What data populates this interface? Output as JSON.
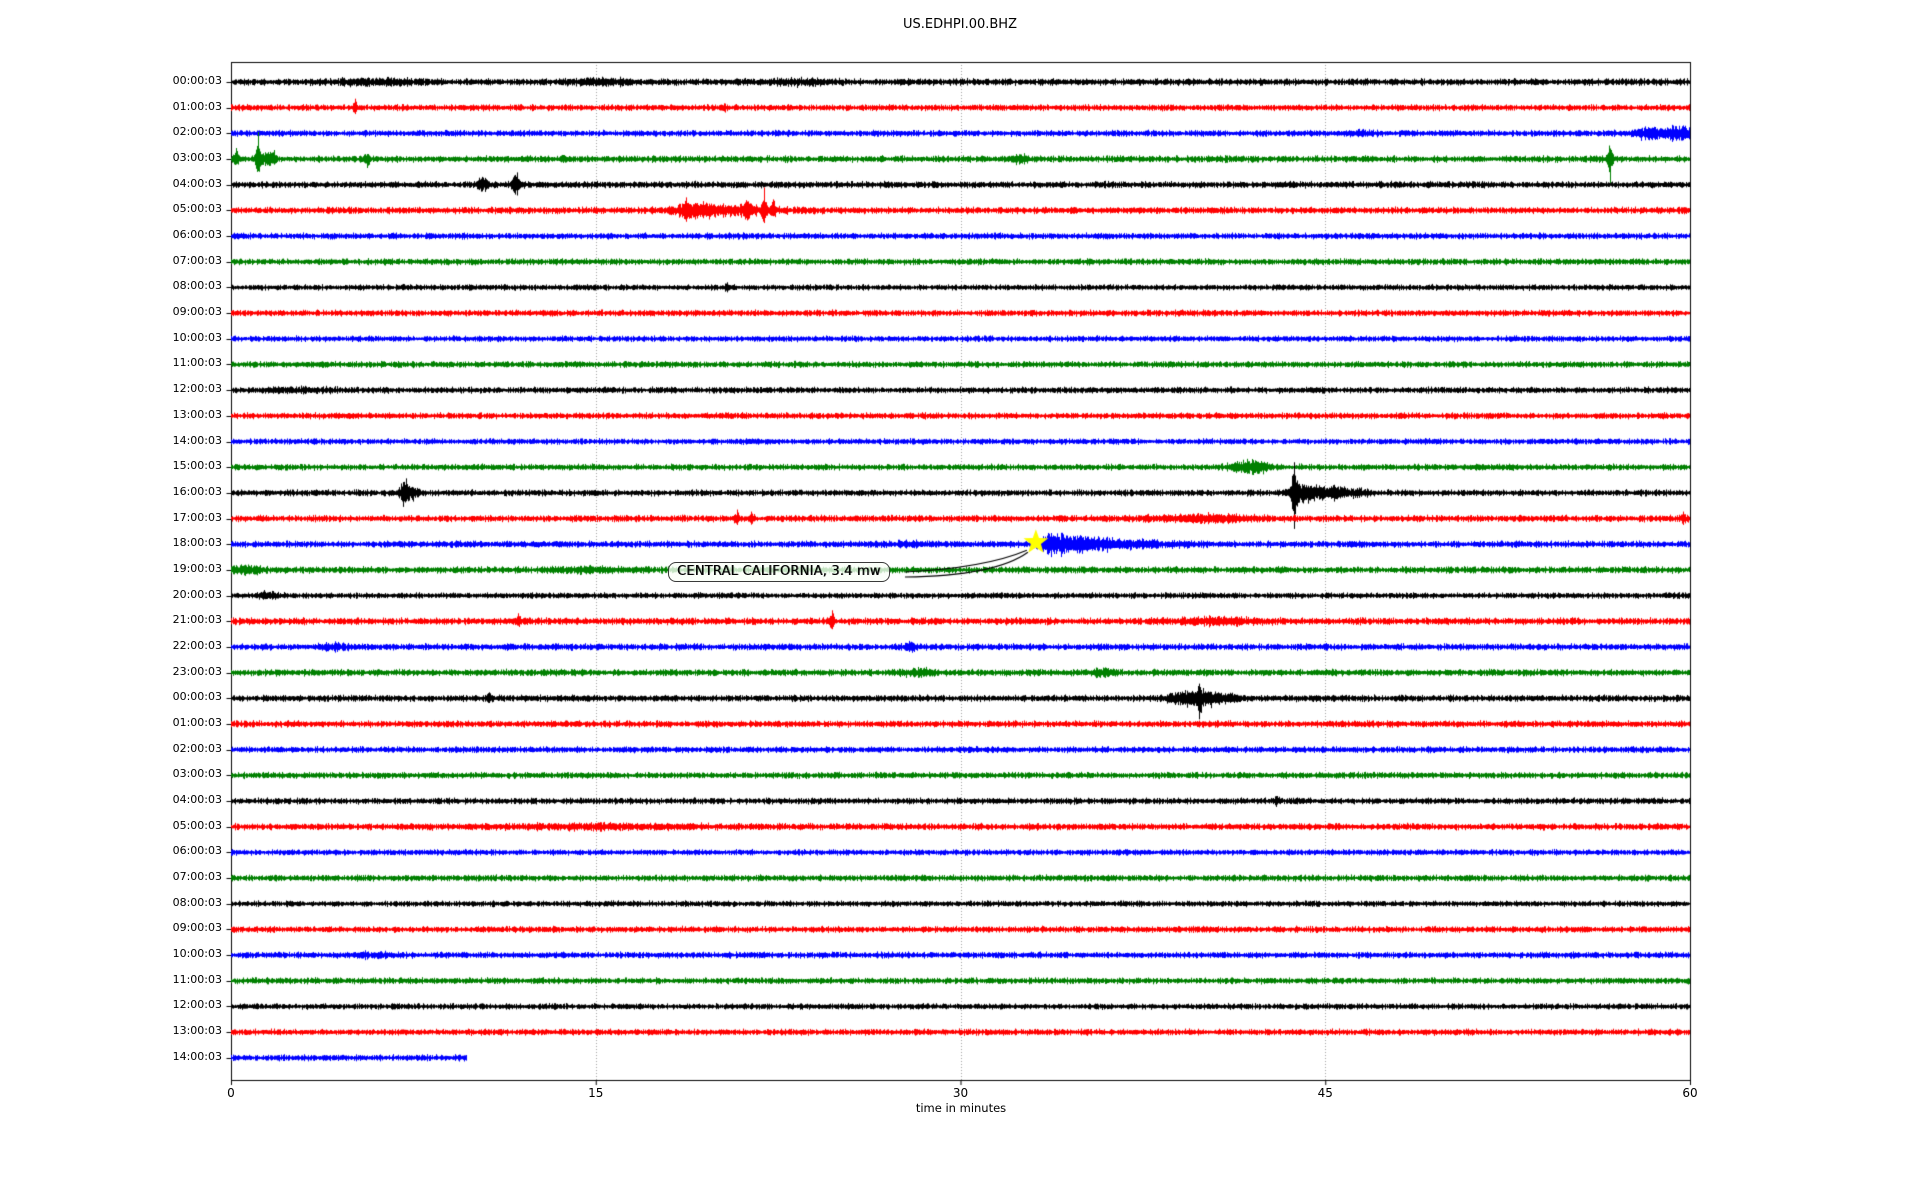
{
  "chart_data": {
    "type": "line",
    "subtype": "helicorder-seismogram",
    "title": "US.EDHPI.00.BHZ",
    "xlabel": "time in minutes",
    "xlim": [
      0,
      60
    ],
    "xticks": [
      0,
      15,
      30,
      45,
      60
    ],
    "grid_minutes": [
      15,
      30,
      45
    ],
    "grid_style": "dotted",
    "background": "#ffffff",
    "trace_colors": {
      "black": "#000000",
      "red": "#ff0000",
      "blue": "#0000ff",
      "green": "#008000"
    },
    "annotation": {
      "text": "CENTRAL CALIFORNIA, 3.4 mw",
      "event_row_label": "18:00:03",
      "event_minute": 33.1,
      "marker": "star-marker",
      "marker_color": "#ffff00"
    },
    "rows": [
      {
        "label": "00:00:03",
        "color": "black",
        "duration": 60,
        "noise": 3.5,
        "events": [
          {
            "t": 6.0,
            "amp": 2.5,
            "w": 1.2
          },
          {
            "t": 15.3,
            "amp": 2.5,
            "w": 0.8
          },
          {
            "t": 23.3,
            "amp": 2.5,
            "w": 0.8
          }
        ]
      },
      {
        "label": "01:00:03",
        "color": "red",
        "duration": 60,
        "noise": 3.2,
        "events": [
          {
            "t": 5.1,
            "amp": 9,
            "w": 0.05
          },
          {
            "t": 20.3,
            "amp": 4,
            "w": 0.08
          }
        ]
      },
      {
        "label": "02:00:03",
        "color": "blue",
        "duration": 60,
        "noise": 3.2,
        "events": [
          {
            "t": 46.5,
            "amp": 2,
            "w": 0.5
          },
          {
            "t": 58.2,
            "amp": 5,
            "w": 0.5
          },
          {
            "t": 59.4,
            "amp": 6,
            "w": 0.6
          }
        ]
      },
      {
        "label": "03:00:03",
        "color": "green",
        "duration": 60,
        "noise": 3.4,
        "events": [
          {
            "t": 0.2,
            "amp": 11,
            "w": 0.05,
            "u": 1,
            "d": 0.45
          },
          {
            "t": 1.1,
            "amp": 27,
            "w": 0.05,
            "u": 1,
            "d": 0.3
          },
          {
            "t": 1.45,
            "amp": 8,
            "w": 0.15
          },
          {
            "t": 1.75,
            "amp": 9,
            "w": 0.05
          },
          {
            "t": 5.6,
            "amp": 9,
            "w": 0.04,
            "u": 0.25,
            "d": 1
          },
          {
            "t": 13.7,
            "amp": 4,
            "w": 0.1
          },
          {
            "t": 32.4,
            "amp": 4,
            "w": 0.25
          },
          {
            "t": 56.7,
            "amp": 24,
            "w": 0.04,
            "u": 0.15,
            "d": 1
          }
        ]
      },
      {
        "label": "04:00:03",
        "color": "black",
        "duration": 60,
        "noise": 3.4,
        "events": [
          {
            "t": 10.3,
            "amp": 7,
            "w": 0.15
          },
          {
            "t": 11.7,
            "amp": 11,
            "w": 0.12
          }
        ]
      },
      {
        "label": "05:00:03",
        "color": "red",
        "duration": 60,
        "noise": 3.4,
        "events": [
          {
            "t": 18.7,
            "amp": 13,
            "w": 0.1
          },
          {
            "t": 19.1,
            "amp": 5,
            "w": 0.6
          },
          {
            "t": 20.5,
            "amp": 4,
            "w": 1.5
          },
          {
            "t": 21.2,
            "amp": 8,
            "w": 0.15
          },
          {
            "t": 21.9,
            "amp": 23,
            "w": 0.06,
            "u": 1,
            "d": 0.55
          },
          {
            "t": 22.3,
            "amp": 11,
            "w": 0.1
          }
        ]
      },
      {
        "label": "06:00:03",
        "color": "blue",
        "duration": 60,
        "noise": 3.2,
        "events": []
      },
      {
        "label": "07:00:03",
        "color": "green",
        "duration": 60,
        "noise": 3.2,
        "events": []
      },
      {
        "label": "08:00:03",
        "color": "black",
        "duration": 60,
        "noise": 3.0,
        "events": [
          {
            "t": 20.4,
            "amp": 5,
            "w": 0.06
          }
        ]
      },
      {
        "label": "09:00:03",
        "color": "red",
        "duration": 60,
        "noise": 3.2,
        "events": []
      },
      {
        "label": "10:00:03",
        "color": "blue",
        "duration": 60,
        "noise": 3.0,
        "events": []
      },
      {
        "label": "11:00:03",
        "color": "green",
        "duration": 60,
        "noise": 3.2,
        "events": []
      },
      {
        "label": "12:00:03",
        "color": "black",
        "duration": 60,
        "noise": 3.2,
        "events": [
          {
            "t": 2.8,
            "amp": 1.5,
            "w": 1.0
          }
        ]
      },
      {
        "label": "13:00:03",
        "color": "red",
        "duration": 60,
        "noise": 3.2,
        "events": []
      },
      {
        "label": "14:00:03",
        "color": "blue",
        "duration": 60,
        "noise": 3.0,
        "events": []
      },
      {
        "label": "15:00:03",
        "color": "green",
        "duration": 60,
        "noise": 3.2,
        "events": [
          {
            "t": 41.9,
            "amp": 7,
            "w": 0.5
          }
        ]
      },
      {
        "label": "16:00:03",
        "color": "black",
        "duration": 60,
        "noise": 3.2,
        "events": [
          {
            "t": 7.1,
            "amp": 12,
            "w": 0.12
          },
          {
            "t": 7.45,
            "amp": 6,
            "w": 0.25
          },
          {
            "t": 43.7,
            "amp": 36,
            "w": 0.05,
            "u": 0.85,
            "d": 1
          },
          {
            "t": 43.95,
            "amp": 10,
            "w": 0.3
          },
          {
            "t": 44.6,
            "amp": 8,
            "w": 0.25
          },
          {
            "t": 45.3,
            "amp": 6,
            "w": 0.3
          },
          {
            "t": 46.1,
            "amp": 4,
            "w": 0.5
          }
        ]
      },
      {
        "label": "17:00:03",
        "color": "red",
        "duration": 60,
        "noise": 3.4,
        "events": [
          {
            "t": 20.8,
            "amp": 9,
            "w": 0.06
          },
          {
            "t": 21.4,
            "amp": 7,
            "w": 0.06
          },
          {
            "t": 40.2,
            "amp": 3,
            "w": 1.6
          },
          {
            "t": 59.7,
            "amp": 7,
            "w": 0.08
          }
        ]
      },
      {
        "label": "18:00:03",
        "color": "blue",
        "duration": 60,
        "noise": 3.4,
        "events": [
          {
            "t": 27.7,
            "amp": 2,
            "w": 0.8
          },
          {
            "t": 33.6,
            "amp": 10,
            "w": 0.25
          },
          {
            "t": 34.2,
            "amp": 8,
            "w": 0.5
          },
          {
            "t": 35.3,
            "amp": 5,
            "w": 0.8
          },
          {
            "t": 37.0,
            "amp": 3,
            "w": 1.5
          }
        ]
      },
      {
        "label": "19:00:03",
        "color": "green",
        "duration": 60,
        "noise": 3.4,
        "events": [
          {
            "t": 0.5,
            "amp": 3,
            "w": 0.5
          },
          {
            "t": 14.5,
            "amp": 2,
            "w": 1.0
          }
        ]
      },
      {
        "label": "20:00:03",
        "color": "black",
        "duration": 60,
        "noise": 3.0,
        "events": [
          {
            "t": 1.5,
            "amp": 3,
            "w": 0.3
          }
        ]
      },
      {
        "label": "21:00:03",
        "color": "red",
        "duration": 60,
        "noise": 3.6,
        "events": [
          {
            "t": 11.8,
            "amp": 8,
            "w": 0.05
          },
          {
            "t": 24.7,
            "amp": 11,
            "w": 0.06
          },
          {
            "t": 40.7,
            "amp": 3,
            "w": 1.2
          }
        ]
      },
      {
        "label": "22:00:03",
        "color": "blue",
        "duration": 60,
        "noise": 3.4,
        "events": [
          {
            "t": 4.2,
            "amp": 3,
            "w": 0.5
          },
          {
            "t": 27.9,
            "amp": 5,
            "w": 0.15
          }
        ]
      },
      {
        "label": "23:00:03",
        "color": "green",
        "duration": 60,
        "noise": 3.4,
        "events": [
          {
            "t": 28.2,
            "amp": 3,
            "w": 0.5
          },
          {
            "t": 35.8,
            "amp": 4,
            "w": 0.3
          }
        ]
      },
      {
        "label": "00:00:03",
        "color": "black",
        "duration": 60,
        "noise": 3.4,
        "events": [
          {
            "t": 10.6,
            "amp": 6,
            "w": 0.08
          },
          {
            "t": 38.9,
            "amp": 6,
            "w": 0.3
          },
          {
            "t": 39.4,
            "amp": 7,
            "w": 0.2
          },
          {
            "t": 39.8,
            "amp": 21,
            "w": 0.06,
            "u": 0.7,
            "d": 1
          },
          {
            "t": 40.1,
            "amp": 8,
            "w": 0.3
          },
          {
            "t": 40.9,
            "amp": 4,
            "w": 0.4
          }
        ]
      },
      {
        "label": "01:00:03",
        "color": "red",
        "duration": 60,
        "noise": 3.4,
        "events": []
      },
      {
        "label": "02:00:03",
        "color": "blue",
        "duration": 60,
        "noise": 3.2,
        "events": []
      },
      {
        "label": "03:00:03",
        "color": "green",
        "duration": 60,
        "noise": 3.2,
        "events": []
      },
      {
        "label": "04:00:03",
        "color": "black",
        "duration": 60,
        "noise": 3.2,
        "events": [
          {
            "t": 43.0,
            "amp": 5,
            "w": 0.1
          }
        ]
      },
      {
        "label": "05:00:03",
        "color": "red",
        "duration": 60,
        "noise": 3.4,
        "events": [
          {
            "t": 15.0,
            "amp": 1.5,
            "w": 3.0
          }
        ]
      },
      {
        "label": "06:00:03",
        "color": "blue",
        "duration": 60,
        "noise": 3.0,
        "events": []
      },
      {
        "label": "07:00:03",
        "color": "green",
        "duration": 60,
        "noise": 3.2,
        "events": []
      },
      {
        "label": "08:00:03",
        "color": "black",
        "duration": 60,
        "noise": 3.0,
        "events": []
      },
      {
        "label": "09:00:03",
        "color": "red",
        "duration": 60,
        "noise": 3.2,
        "events": []
      },
      {
        "label": "10:00:03",
        "color": "blue",
        "duration": 60,
        "noise": 3.2,
        "events": [
          {
            "t": 6.0,
            "amp": 2,
            "w": 0.6
          }
        ]
      },
      {
        "label": "11:00:03",
        "color": "green",
        "duration": 60,
        "noise": 3.2,
        "events": []
      },
      {
        "label": "12:00:03",
        "color": "black",
        "duration": 60,
        "noise": 3.0,
        "events": []
      },
      {
        "label": "13:00:03",
        "color": "red",
        "duration": 60,
        "noise": 3.2,
        "events": []
      },
      {
        "label": "14:00:03",
        "color": "blue",
        "duration": 9.7,
        "noise": 3.2,
        "events": []
      }
    ]
  }
}
